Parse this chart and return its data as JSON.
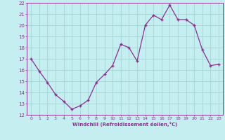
{
  "x": [
    0,
    1,
    2,
    3,
    4,
    5,
    6,
    7,
    8,
    9,
    10,
    11,
    12,
    13,
    14,
    15,
    16,
    17,
    18,
    19,
    20,
    21,
    22,
    23
  ],
  "y": [
    17.0,
    15.9,
    14.9,
    13.8,
    13.2,
    12.5,
    12.8,
    13.3,
    14.9,
    15.6,
    16.4,
    18.3,
    18.0,
    16.8,
    20.0,
    20.9,
    20.5,
    21.8,
    20.5,
    20.5,
    20.0,
    17.8,
    16.4,
    16.5
  ],
  "line_color": "#8b2f8f",
  "marker_color": "#8b2f8f",
  "bg_color": "#c5eef0",
  "grid_color": "#9ecfcf",
  "axis_color": "#8b2f8f",
  "tick_color": "#8b2f8f",
  "xlabel": "Windchill (Refroidissement éolien,°C)",
  "ylim": [
    12,
    22
  ],
  "xlim": [
    -0.5,
    23.5
  ],
  "yticks": [
    12,
    13,
    14,
    15,
    16,
    17,
    18,
    19,
    20,
    21,
    22
  ],
  "xticks": [
    0,
    1,
    2,
    3,
    4,
    5,
    6,
    7,
    8,
    9,
    10,
    11,
    12,
    13,
    14,
    15,
    16,
    17,
    18,
    19,
    20,
    21,
    22,
    23
  ]
}
